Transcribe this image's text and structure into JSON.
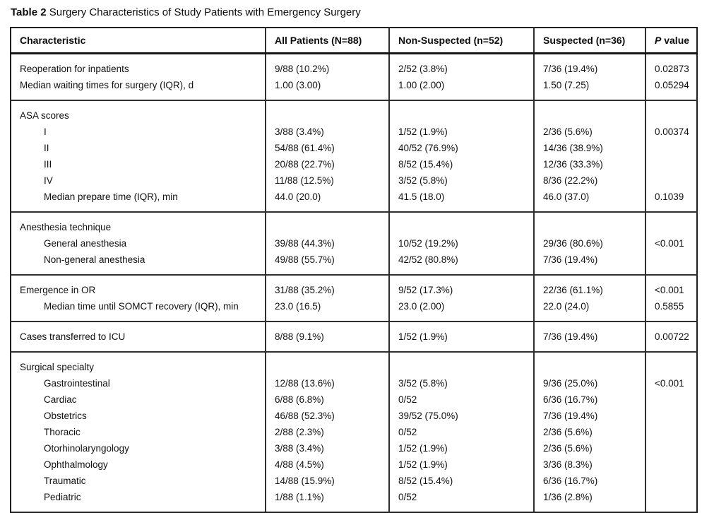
{
  "caption": {
    "label": "Table 2",
    "text": " Surgery Characteristics of Study Patients with Emergency Surgery"
  },
  "table": {
    "columns": [
      "Characteristic",
      "All Patients (N=88)",
      "Non-Suspected (n=52)",
      "Suspected (n=36)",
      "P value"
    ],
    "sections": [
      {
        "rows": [
          {
            "label": "Reoperation for inpatients",
            "indent": false,
            "values": [
              "9/88 (10.2%)",
              "2/52 (3.8%)",
              "7/36 (19.4%)",
              "0.02873"
            ]
          },
          {
            "label": "Median waiting times for surgery (IQR), d",
            "indent": false,
            "values": [
              "1.00 (3.00)",
              "1.00 (2.00)",
              "1.50 (7.25)",
              "0.05294"
            ]
          }
        ]
      },
      {
        "rows": [
          {
            "label": "ASA scores",
            "indent": false,
            "values": [
              "",
              "",
              "",
              ""
            ]
          },
          {
            "label": "I",
            "indent": true,
            "values": [
              "3/88 (3.4%)",
              "1/52 (1.9%)",
              "2/36 (5.6%)",
              "0.00374"
            ]
          },
          {
            "label": "II",
            "indent": true,
            "values": [
              "54/88 (61.4%)",
              "40/52 (76.9%)",
              "14/36 (38.9%)",
              ""
            ]
          },
          {
            "label": "III",
            "indent": true,
            "values": [
              "20/88 (22.7%)",
              "8/52 (15.4%)",
              "12/36 (33.3%)",
              ""
            ]
          },
          {
            "label": "IV",
            "indent": true,
            "values": [
              "11/88 (12.5%)",
              "3/52 (5.8%)",
              "8/36 (22.2%)",
              ""
            ]
          },
          {
            "label": "Median prepare time (IQR), min",
            "indent": true,
            "values": [
              "44.0 (20.0)",
              "41.5 (18.0)",
              "46.0 (37.0)",
              "0.1039"
            ]
          }
        ]
      },
      {
        "rows": [
          {
            "label": "Anesthesia technique",
            "indent": false,
            "values": [
              "",
              "",
              "",
              ""
            ]
          },
          {
            "label": "General anesthesia",
            "indent": true,
            "values": [
              "39/88 (44.3%)",
              "10/52 (19.2%)",
              "29/36 (80.6%)",
              "<0.001"
            ]
          },
          {
            "label": "Non-general anesthesia",
            "indent": true,
            "values": [
              "49/88 (55.7%)",
              "42/52 (80.8%)",
              "7/36 (19.4%)",
              ""
            ]
          }
        ]
      },
      {
        "rows": [
          {
            "label": "Emergence in OR",
            "indent": false,
            "values": [
              "31/88 (35.2%)",
              "9/52 (17.3%)",
              "22/36 (61.1%)",
              "<0.001"
            ]
          },
          {
            "label": "Median time until SOMCT recovery (IQR), min",
            "indent": true,
            "values": [
              "23.0 (16.5)",
              "23.0 (2.00)",
              "22.0 (24.0)",
              "0.5855"
            ]
          }
        ]
      },
      {
        "rows": [
          {
            "label": "Cases transferred to ICU",
            "indent": false,
            "values": [
              "8/88 (9.1%)",
              "1/52 (1.9%)",
              "7/36 (19.4%)",
              "0.00722"
            ]
          }
        ]
      },
      {
        "rows": [
          {
            "label": "Surgical specialty",
            "indent": false,
            "values": [
              "",
              "",
              "",
              ""
            ]
          },
          {
            "label": "Gastrointestinal",
            "indent": true,
            "values": [
              "12/88 (13.6%)",
              "3/52 (5.8%)",
              "9/36 (25.0%)",
              "<0.001"
            ]
          },
          {
            "label": "Cardiac",
            "indent": true,
            "values": [
              "6/88 (6.8%)",
              "0/52",
              "6/36 (16.7%)",
              ""
            ]
          },
          {
            "label": "Obstetrics",
            "indent": true,
            "values": [
              "46/88 (52.3%)",
              "39/52 (75.0%)",
              "7/36 (19.4%)",
              ""
            ]
          },
          {
            "label": "Thoracic",
            "indent": true,
            "values": [
              "2/88 (2.3%)",
              "0/52",
              "2/36 (5.6%)",
              ""
            ]
          },
          {
            "label": "Otorhinolaryngology",
            "indent": true,
            "values": [
              "3/88 (3.4%)",
              "1/52 (1.9%)",
              "2/36 (5.6%)",
              ""
            ]
          },
          {
            "label": "Ophthalmology",
            "indent": true,
            "values": [
              "4/88 (4.5%)",
              "1/52 (1.9%)",
              "3/36 (8.3%)",
              ""
            ]
          },
          {
            "label": "Traumatic",
            "indent": true,
            "values": [
              "14/88 (15.9%)",
              "8/52 (15.4%)",
              "6/36 (16.7%)",
              ""
            ]
          },
          {
            "label": "Pediatric",
            "indent": true,
            "values": [
              "1/88 (1.1%)",
              "0/52",
              "1/36 (2.8%)",
              ""
            ]
          }
        ]
      }
    ]
  }
}
